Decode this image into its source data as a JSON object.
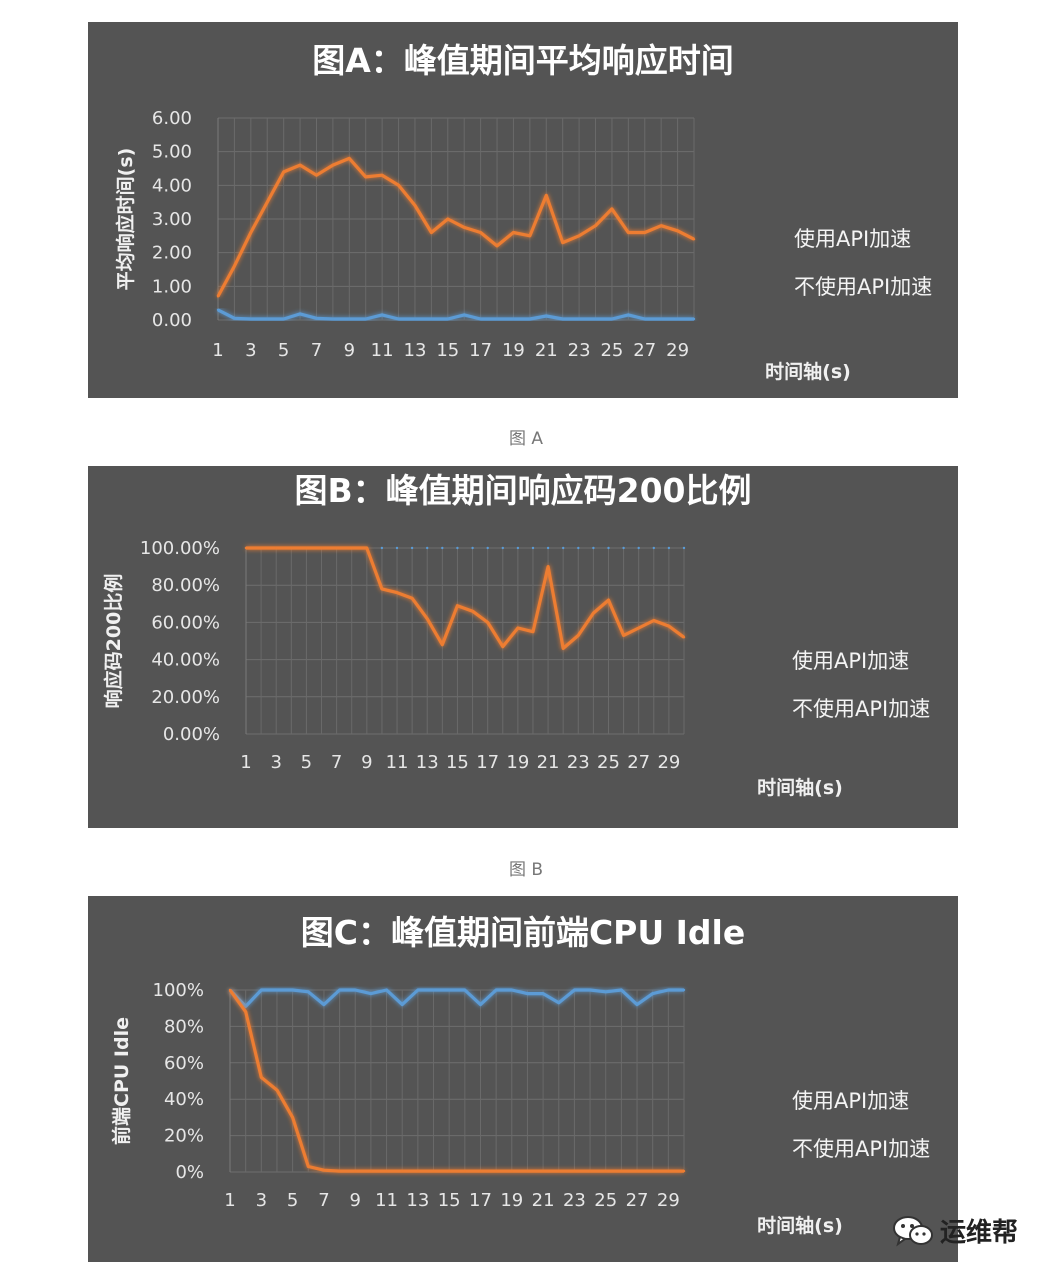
{
  "captions": [
    "图 A",
    "图 B"
  ],
  "watermark": {
    "text": "运维帮",
    "icon": "wechat-icon"
  },
  "colors": {
    "blue": "#5b9bd5",
    "orange": "#ed7d31",
    "panel": "#545454",
    "grid": "#6e6e6e"
  },
  "chart_data": [
    {
      "type": "line",
      "title": "图A：峰值期间平均响应时间",
      "xlabel": "时间轴(s)",
      "ylabel": "平均响应时间(s)",
      "ylim": [
        0,
        6
      ],
      "yticks": [
        "6.00",
        "5.00",
        "4.00",
        "3.00",
        "2.00",
        "1.00",
        "0.00"
      ],
      "xtick_labels": [
        "1",
        "3",
        "5",
        "7",
        "9",
        "11",
        "13",
        "15",
        "17",
        "19",
        "21",
        "23",
        "25",
        "27",
        "29"
      ],
      "x": [
        1,
        2,
        3,
        4,
        5,
        6,
        7,
        8,
        9,
        10,
        11,
        12,
        13,
        14,
        15,
        16,
        17,
        18,
        19,
        20,
        21,
        22,
        23,
        24,
        25,
        26,
        27,
        28,
        29,
        30
      ],
      "series": [
        {
          "name": "使用API加速",
          "color": "#5b9bd5",
          "values": [
            0.3,
            0.05,
            0.03,
            0.03,
            0.03,
            0.18,
            0.05,
            0.03,
            0.03,
            0.03,
            0.15,
            0.03,
            0.03,
            0.03,
            0.03,
            0.15,
            0.03,
            0.03,
            0.03,
            0.03,
            0.12,
            0.03,
            0.03,
            0.03,
            0.03,
            0.15,
            0.03,
            0.03,
            0.03,
            0.03
          ]
        },
        {
          "name": "不使用API加速",
          "color": "#ed7d31",
          "values": [
            0.7,
            1.6,
            2.6,
            3.5,
            4.4,
            4.6,
            4.3,
            4.6,
            4.8,
            4.25,
            4.3,
            4.0,
            3.4,
            2.6,
            3.0,
            2.75,
            2.6,
            2.2,
            2.6,
            2.5,
            3.7,
            2.3,
            2.5,
            2.8,
            3.3,
            2.6,
            2.6,
            2.8,
            2.65,
            2.4
          ]
        }
      ],
      "legend_position": "right",
      "grid": true
    },
    {
      "type": "line",
      "title": "图B：峰值期间响应码200比例",
      "xlabel": "时间轴(s)",
      "ylabel": "响应码200比例",
      "ylim": [
        0,
        100
      ],
      "yticks": [
        "100.00%",
        "80.00%",
        "60.00%",
        "40.00%",
        "20.00%",
        "0.00%"
      ],
      "xtick_labels": [
        "1",
        "3",
        "5",
        "7",
        "9",
        "11",
        "13",
        "15",
        "17",
        "19",
        "21",
        "23",
        "25",
        "27",
        "29"
      ],
      "x": [
        1,
        2,
        3,
        4,
        5,
        6,
        7,
        8,
        9,
        10,
        11,
        12,
        13,
        14,
        15,
        16,
        17,
        18,
        19,
        20,
        21,
        22,
        23,
        24,
        25,
        26,
        27,
        28,
        29,
        30
      ],
      "series": [
        {
          "name": "使用API加速",
          "color": "#5b9bd5",
          "values": [
            100,
            100,
            100,
            100,
            100,
            100,
            100,
            100,
            100,
            100,
            100,
            100,
            100,
            100,
            100,
            100,
            100,
            100,
            100,
            100,
            100,
            100,
            100,
            100,
            100,
            100,
            100,
            100,
            100,
            100
          ]
        },
        {
          "name": "不使用API加速",
          "color": "#ed7d31",
          "values": [
            100,
            100,
            100,
            100,
            100,
            100,
            100,
            100,
            100,
            78,
            76,
            73,
            62,
            48,
            69,
            66,
            60,
            47,
            57,
            55,
            90,
            46,
            53,
            65,
            72,
            53,
            57,
            61,
            58,
            52
          ]
        }
      ],
      "legend_position": "right",
      "grid": true
    },
    {
      "type": "line",
      "title": "图C：峰值期间前端CPU Idle",
      "xlabel": "时间轴(s)",
      "ylabel": "前端CPU Idle",
      "ylim": [
        0,
        100
      ],
      "yticks": [
        "100%",
        "80%",
        "60%",
        "40%",
        "20%",
        "0%"
      ],
      "xtick_labels": [
        "1",
        "3",
        "5",
        "7",
        "9",
        "11",
        "13",
        "15",
        "17",
        "19",
        "21",
        "23",
        "25",
        "27",
        "29"
      ],
      "x": [
        1,
        2,
        3,
        4,
        5,
        6,
        7,
        8,
        9,
        10,
        11,
        12,
        13,
        14,
        15,
        16,
        17,
        18,
        19,
        20,
        21,
        22,
        23,
        24,
        25,
        26,
        27,
        28,
        29,
        30
      ],
      "series": [
        {
          "name": "使用API加速",
          "color": "#5b9bd5",
          "values": [
            100,
            91,
            100,
            100,
            100,
            99,
            92,
            100,
            100,
            98,
            100,
            92,
            100,
            100,
            100,
            100,
            92,
            100,
            100,
            98,
            98,
            93,
            100,
            100,
            99,
            100,
            92,
            98,
            100,
            100
          ]
        },
        {
          "name": "不使用API加速",
          "color": "#ed7d31",
          "values": [
            100,
            88,
            52,
            45,
            30,
            3,
            1,
            0.5,
            0.5,
            0.5,
            0.5,
            0.5,
            0.5,
            0.5,
            0.5,
            0.5,
            0.5,
            0.5,
            0.5,
            0.5,
            0.5,
            0.5,
            0.5,
            0.5,
            0.5,
            0.5,
            0.5,
            0.5,
            0.5,
            0.5
          ]
        }
      ],
      "legend_position": "right",
      "grid": true
    }
  ]
}
